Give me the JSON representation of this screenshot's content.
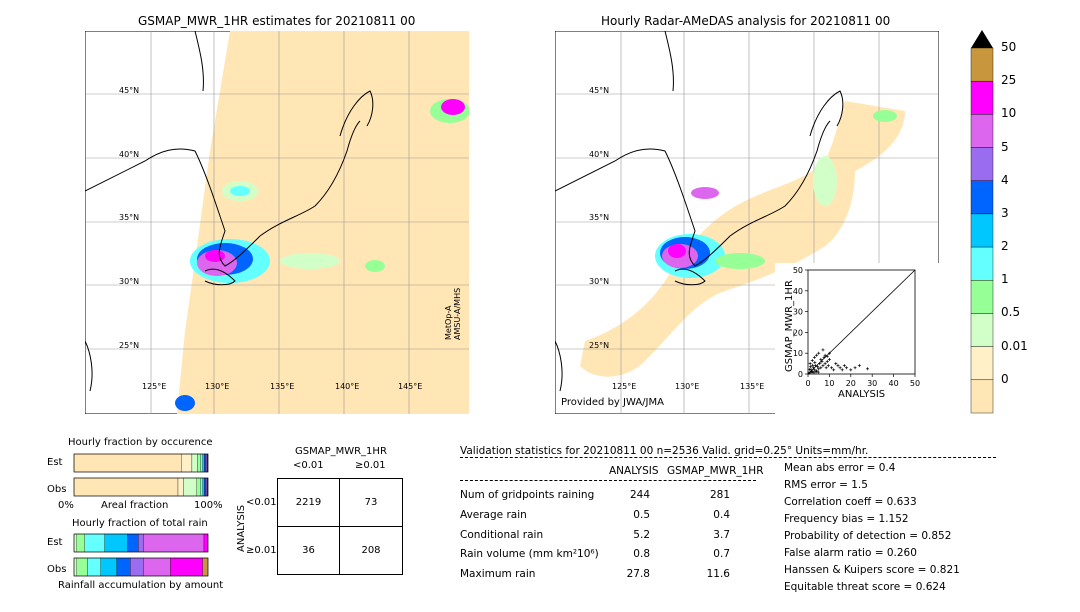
{
  "left_map": {
    "title": "GSMAP_MWR_1HR estimates for 20210811 00",
    "lat_labels": [
      "45°N",
      "40°N",
      "35°N",
      "30°N",
      "25°N"
    ],
    "lon_labels": [
      "125°E",
      "130°E",
      "135°E",
      "140°E",
      "145°E"
    ],
    "sensor_lines": [
      "MetOp-A",
      "AMSU-A/MHS"
    ]
  },
  "right_map": {
    "title": "Hourly Radar-AMeDAS analysis for 20210811 00",
    "lat_labels": [
      "45°N",
      "40°N",
      "35°N",
      "30°N",
      "25°N"
    ],
    "lon_labels": [
      "125°E",
      "130°E",
      "135°E"
    ],
    "credit": "Provided by JWA/JMA"
  },
  "colorbar": {
    "ticks": [
      "50",
      "25",
      "10",
      "5",
      "4",
      "3",
      "2",
      "1",
      "0.5",
      "0.01",
      "0"
    ],
    "colors": [
      "#c8963c",
      "#ff00ff",
      "#dd66ee",
      "#9a6cf0",
      "#0064ff",
      "#00c8ff",
      "#64ffff",
      "#96ff96",
      "#d2ffc8",
      "#fff0c8",
      "#ffe6b4"
    ]
  },
  "chart_data": [
    {
      "type": "scatter",
      "title": "",
      "xlabel": "ANALYSIS",
      "ylabel": "GSMAP_MWR_1HR",
      "xlim": [
        0,
        50
      ],
      "ylim": [
        0,
        50
      ],
      "x_ticks": [
        "0",
        "10",
        "20",
        "30",
        "40",
        "50"
      ],
      "y_ticks": [
        "0",
        "10",
        "20",
        "30",
        "40",
        "50"
      ],
      "points": [
        [
          0.5,
          0.4
        ],
        [
          1,
          0.8
        ],
        [
          1.5,
          2
        ],
        [
          2,
          1.2
        ],
        [
          2.5,
          3
        ],
        [
          3,
          2
        ],
        [
          3.5,
          4
        ],
        [
          4,
          1.5
        ],
        [
          4.5,
          3.5
        ],
        [
          5,
          2.5
        ],
        [
          5.5,
          5
        ],
        [
          6,
          3
        ],
        [
          6.5,
          6
        ],
        [
          7,
          4
        ],
        [
          7.5,
          8
        ],
        [
          8,
          5
        ],
        [
          8.5,
          3
        ],
        [
          9,
          6
        ],
        [
          9.5,
          4
        ],
        [
          10,
          7
        ],
        [
          11,
          3
        ],
        [
          12,
          2
        ],
        [
          13,
          5
        ],
        [
          14,
          4
        ],
        [
          15,
          3
        ],
        [
          16,
          2
        ],
        [
          17,
          4
        ],
        [
          18,
          3
        ],
        [
          20,
          2
        ],
        [
          22,
          3
        ],
        [
          24,
          4
        ],
        [
          27.8,
          2.5
        ],
        [
          1,
          5
        ],
        [
          2,
          6.5
        ],
        [
          3,
          8
        ],
        [
          4,
          9
        ],
        [
          5,
          10
        ],
        [
          6,
          7
        ],
        [
          7,
          11.6
        ],
        [
          8,
          9
        ],
        [
          9,
          8.5
        ],
        [
          10,
          10
        ],
        [
          1.2,
          3.5
        ],
        [
          2.2,
          4.2
        ],
        [
          3.2,
          5.5
        ],
        [
          0.8,
          2.2
        ],
        [
          1.8,
          1.0
        ],
        [
          2.8,
          0.6
        ],
        [
          3.8,
          1.1
        ],
        [
          4.8,
          0.9
        ]
      ],
      "diagonal": true
    },
    {
      "type": "bar",
      "title": "Hourly fraction by occurence",
      "stacked": true,
      "orientation": "horizontal",
      "categories": [
        "Est",
        "Obs"
      ],
      "xlabel": "Areal fraction",
      "x_ticks": [
        "0%",
        "100%"
      ],
      "colors": [
        "#ffe6b4",
        "#fff0c8",
        "#d2ffc8",
        "#96ff96",
        "#64ffff",
        "#00c8ff",
        "#0064ff",
        "#9a6cf0",
        "#dd66ee",
        "#ff00ff",
        "#c8963c"
      ],
      "series_values": {
        "Est": [
          0.8,
          0.08,
          0.04,
          0.025,
          0.015,
          0.012,
          0.01,
          0.008,
          0.005,
          0.005,
          0.0
        ],
        "Obs": [
          0.78,
          0.04,
          0.1,
          0.03,
          0.015,
          0.012,
          0.01,
          0.008,
          0.005,
          0.005,
          0.0
        ]
      }
    },
    {
      "type": "bar",
      "title": "Hourly fraction of total rain",
      "stacked": true,
      "orientation": "horizontal",
      "categories": [
        "Est",
        "Obs"
      ],
      "xlabel": "Rainfall accumulation by amount",
      "colors": [
        "#ffe6b4",
        "#fff0c8",
        "#d2ffc8",
        "#96ff96",
        "#64ffff",
        "#00c8ff",
        "#0064ff",
        "#9a6cf0",
        "#dd66ee",
        "#ff00ff",
        "#c8963c"
      ],
      "series_values": {
        "Est": [
          0.0,
          0.0,
          0.02,
          0.06,
          0.15,
          0.17,
          0.08,
          0.04,
          0.45,
          0.03,
          0.0
        ],
        "Obs": [
          0.0,
          0.0,
          0.02,
          0.08,
          0.1,
          0.12,
          0.1,
          0.1,
          0.2,
          0.24,
          0.04
        ]
      }
    }
  ],
  "contingency": {
    "title": "GSMAP_MWR_1HR",
    "col_labels": [
      "<0.01",
      "≥0.01"
    ],
    "row_axis_label": "ANALYSIS",
    "row_labels": [
      "<0.01",
      "≥0.01"
    ],
    "cells": [
      [
        "2219",
        "73"
      ],
      [
        "36",
        "208"
      ]
    ]
  },
  "validation": {
    "header": "Validation statistics for 20210811 00  n=2536 Valid. grid=0.25° Units=mm/hr.",
    "col_headers": [
      "ANALYSIS",
      "GSMAP_MWR_1HR"
    ],
    "rows": [
      {
        "label": "Num of gridpoints raining",
        "a": "244",
        "b": "281"
      },
      {
        "label": "Average rain",
        "a": "0.5",
        "b": "0.4"
      },
      {
        "label": "Conditional rain",
        "a": "5.2",
        "b": "3.7"
      },
      {
        "label": "Rain volume (mm km²10⁶)",
        "a": "0.8",
        "b": "0.7"
      },
      {
        "label": "Maximum rain",
        "a": "27.8",
        "b": "11.6"
      }
    ],
    "scores": [
      "Mean abs error =    0.4",
      "RMS error =    1.5",
      "Correlation coeff =  0.633",
      "Frequency bias =  1.152",
      "Probability of detection =  0.852",
      "False alarm ratio =  0.260",
      "Hanssen & Kuipers score =  0.821",
      "Equitable threat score =  0.624"
    ]
  }
}
